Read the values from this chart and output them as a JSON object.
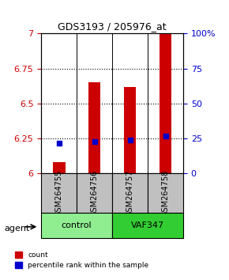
{
  "title": "GDS3193 / 205976_at",
  "samples": [
    "GSM264755",
    "GSM264756",
    "GSM264757",
    "GSM264758"
  ],
  "groups": [
    "control",
    "control",
    "VAF347",
    "VAF347"
  ],
  "group_colors": [
    "#90EE90",
    "#90EE90",
    "#32CD32",
    "#32CD32"
  ],
  "red_values": [
    6.08,
    6.65,
    6.62,
    7.0
  ],
  "blue_values": [
    0.22,
    0.23,
    0.24,
    0.27
  ],
  "ylim_left": [
    6.0,
    7.0
  ],
  "ylim_right": [
    0.0,
    1.0
  ],
  "yticks_left": [
    6.0,
    6.25,
    6.5,
    6.75,
    7.0
  ],
  "ytick_labels_left": [
    "6",
    "6.25",
    "6.5",
    "6.75",
    "7"
  ],
  "yticks_right": [
    0.0,
    0.25,
    0.5,
    0.75,
    1.0
  ],
  "ytick_labels_right": [
    "0",
    "25",
    "50",
    "75",
    "100%"
  ],
  "bar_width": 0.35,
  "red_color": "#CC0000",
  "blue_color": "#0000CC",
  "sample_box_color": "#C0C0C0",
  "control_fill": "#90EE90",
  "vaf_fill": "#32CD32",
  "agent_label": "agent",
  "legend_red": "count",
  "legend_blue": "percentile rank within the sample"
}
